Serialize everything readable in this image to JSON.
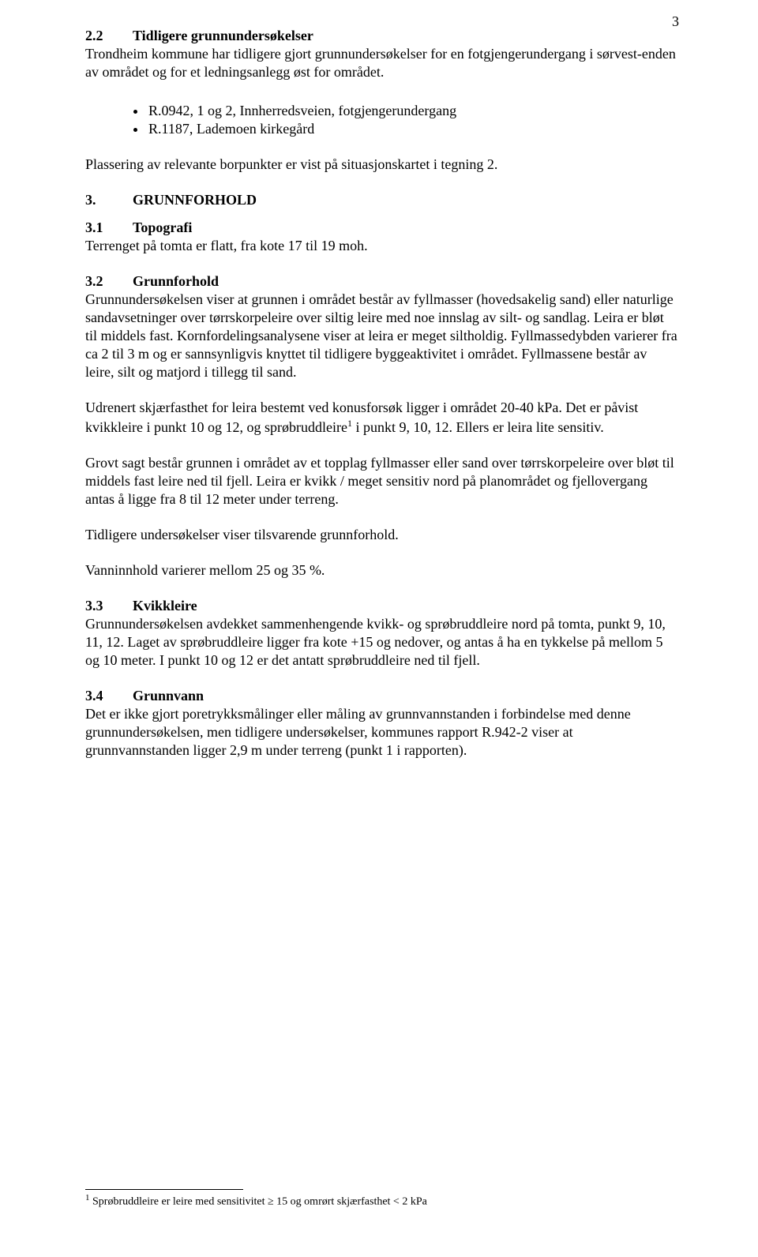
{
  "pageNumber": "3",
  "sec22": {
    "num": "2.2",
    "title": "Tidligere grunnundersøkelser",
    "body": "Trondheim kommune har tidligere gjort grunnundersøkelser for en fotgjengerundergang i sørvest-enden av området og for et ledningsanlegg øst for området.",
    "bullets": [
      "R.0942, 1 og 2, Innherredsveien, fotgjengerundergang",
      "R.1187, Lademoen kirkegård"
    ],
    "after": "Plassering av relevante borpunkter er vist på situasjonskartet i tegning 2."
  },
  "sec3": {
    "num": "3.",
    "title": "GRUNNFORHOLD"
  },
  "sec31": {
    "num": "3.1",
    "title": "Topografi",
    "body": "Terrenget på tomta er flatt, fra kote 17 til 19 moh."
  },
  "sec32": {
    "num": "3.2",
    "title": "Grunnforhold",
    "body1": "Grunnundersøkelsen viser at grunnen i området består av fyllmasser (hovedsakelig sand) eller naturlige sandavsetninger over tørrskorpeleire over siltig leire med noe innslag av silt- og sandlag. Leira er bløt til middels fast. Kornfordelingsanalysene viser at leira er meget siltholdig. Fyllmassedybden varierer fra ca 2 til 3 m og er sannsynligvis knyttet til tidligere byggeaktivitet i området. Fyllmassene består av leire, silt og matjord i tillegg til sand.",
    "body2_a": "Udrenert skjærfasthet for leira bestemt ved konusforsøk ligger i området 20-40 kPa. Det er påvist kvikkleire i punkt 10 og 12, og sprøbruddleire",
    "body2_ref": "1",
    "body2_b": " i punkt 9, 10, 12. Ellers er leira lite sensitiv.",
    "body3": "Grovt sagt består grunnen i området av et topplag fyllmasser eller sand over tørrskorpeleire over bløt til middels fast leire ned til fjell. Leira er kvikk / meget sensitiv nord på planområdet og fjellovergang antas å ligge fra 8 til 12 meter under terreng.",
    "body4": "Tidligere undersøkelser viser tilsvarende grunnforhold.",
    "body5": "Vanninnhold varierer mellom 25 og 35 %."
  },
  "sec33": {
    "num": "3.3",
    "title": "Kvikkleire",
    "body": "Grunnundersøkelsen avdekket sammenhengende kvikk- og sprøbruddleire nord på tomta, punkt 9, 10, 11, 12. Laget av sprøbruddleire ligger fra kote +15 og nedover, og antas å ha en tykkelse på mellom 5 og 10 meter. I punkt 10 og 12 er det antatt sprøbruddleire ned til fjell."
  },
  "sec34": {
    "num": "3.4",
    "title": "Grunnvann",
    "body": "Det er ikke gjort poretrykksmålinger eller måling av grunnvannstanden i forbindelse med denne grunnundersøkelsen, men tidligere undersøkelser, kommunes rapport R.942-2 viser at grunnvannstanden ligger 2,9 m under terreng (punkt 1 i rapporten)."
  },
  "footnote": {
    "ref": "1",
    "text": " Sprøbruddleire er leire med sensitivitet ≥ 15 og omrørt skjærfasthet < 2 kPa"
  }
}
